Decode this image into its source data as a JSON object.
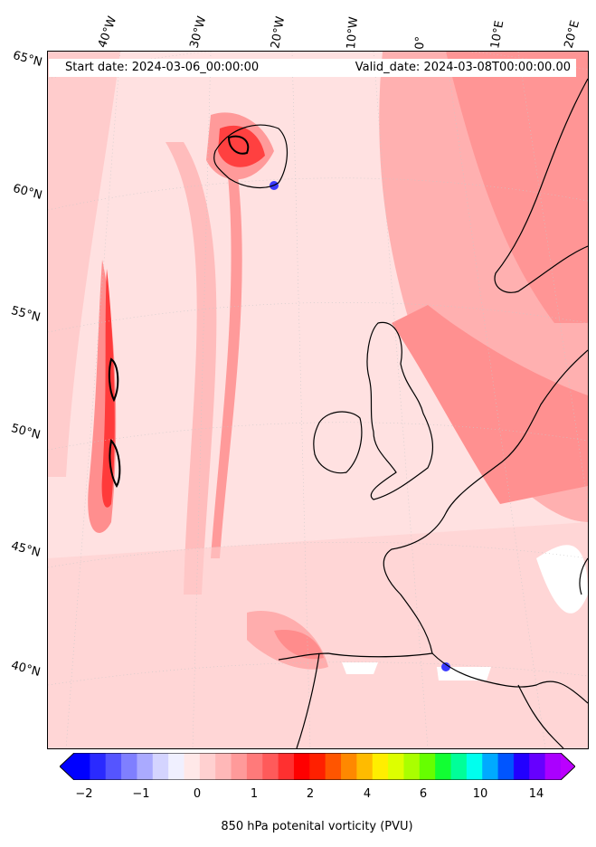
{
  "header": {
    "start_date": "Start date: 2024-03-06_00:00:00",
    "valid_date": "Valid_date: 2024-03-08T00:00:00.00"
  },
  "lon_labels": [
    "40°W",
    "30°W",
    "20°W",
    "10°W",
    "0°",
    "10°E",
    "20°E"
  ],
  "lat_labels": [
    "65°N",
    "60°N",
    "55°N",
    "50°N",
    "45°N",
    "40°N"
  ],
  "colorbar": {
    "ticks": [
      "−2",
      "−1",
      "0",
      "1",
      "2",
      "4",
      "6",
      "10",
      "14"
    ],
    "title": "850 hPa potenital vorticity (PVU)",
    "colors": [
      "#0000ff",
      "#2a2aff",
      "#5555ff",
      "#7f7fff",
      "#aaaaff",
      "#d4d4ff",
      "#f0f0ff",
      "#ffe8e8",
      "#ffd0d0",
      "#ffb8b8",
      "#ff9a9a",
      "#ff7a7a",
      "#ff5a5a",
      "#ff3030",
      "#ff0000",
      "#ff2000",
      "#ff5500",
      "#ff8800",
      "#ffbb00",
      "#ffee00",
      "#ddff00",
      "#aaff00",
      "#66ff00",
      "#11ff33",
      "#00ff99",
      "#00ffee",
      "#00aaff",
      "#0055ff",
      "#2200ff",
      "#6600ff",
      "#aa00ff"
    ],
    "extend_low": "#0000ff",
    "extend_high": "#bb00ff"
  },
  "map": {
    "background_color": "#ffe1e1",
    "coastline_color": "#000000"
  }
}
